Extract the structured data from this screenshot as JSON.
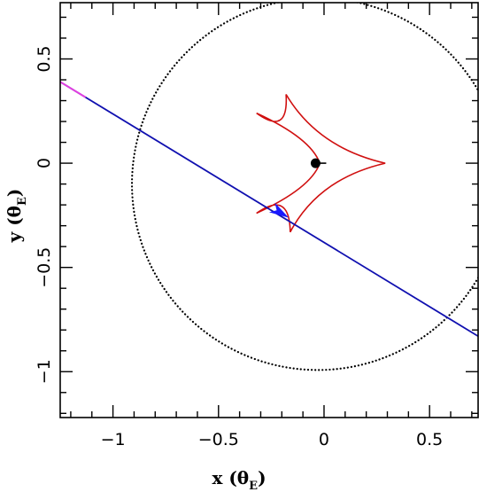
{
  "chart_data": {
    "type": "scatter",
    "xlabel": {
      "main": "x (θ",
      "sub": "E",
      "close": ")"
    },
    "ylabel": {
      "main": "y (θ",
      "sub": "E",
      "close": ")"
    },
    "xlim": [
      -1.25,
      0.73
    ],
    "ylim": [
      -1.22,
      0.77
    ],
    "x_ticks": [
      {
        "value": -1,
        "label": "−1"
      },
      {
        "value": -0.5,
        "label": "−0.5"
      },
      {
        "value": 0,
        "label": "0"
      },
      {
        "value": 0.5,
        "label": "0.5"
      }
    ],
    "y_ticks": [
      {
        "value": -1,
        "label": "−1"
      },
      {
        "value": -0.5,
        "label": "−0.5"
      },
      {
        "value": 0,
        "label": "0"
      },
      {
        "value": 0.5,
        "label": "0.5"
      }
    ],
    "colors": {
      "trajectory": "#1010b0",
      "trajectory_start": "#e040e0",
      "caustic": "#d01010",
      "einstein_ring": "#000000",
      "source_marker": "#1a1aff",
      "lens_marker": "#000000"
    },
    "trajectory": {
      "x": [
        -1.25,
        0.73
      ],
      "y": [
        0.39,
        -0.83
      ],
      "highlight_until_x": -1.13
    },
    "einstein_ring": {
      "cx": -0.03,
      "cy": -0.1,
      "r": 0.88
    },
    "caustic": {
      "cusps": [
        {
          "x": -0.32,
          "y": 0.24
        },
        {
          "x": -0.18,
          "y": 0.33
        },
        {
          "x": 0.29,
          "y": 0.0
        },
        {
          "x": -0.16,
          "y": -0.33
        },
        {
          "x": -0.32,
          "y": -0.24
        }
      ],
      "inner_point": {
        "x": -0.02,
        "y": 0.0
      }
    },
    "lens": {
      "x": -0.04,
      "y": 0.0
    },
    "source": {
      "x": -0.21,
      "y": -0.235
    }
  }
}
